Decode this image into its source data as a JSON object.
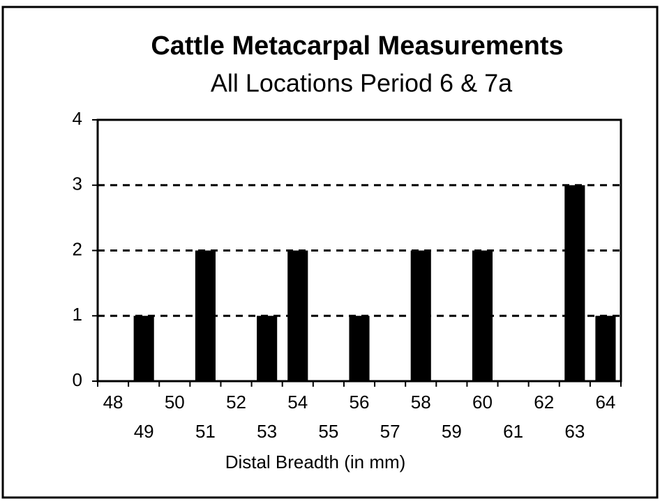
{
  "chart_data": {
    "type": "bar",
    "title": "Cattle Metacarpal Measurements",
    "subtitle": "All Locations Period 6 & 7a",
    "x_label": "Distal Breadth (in mm)",
    "categories": [
      "48",
      "49",
      "50",
      "51",
      "52",
      "53",
      "54",
      "55",
      "56",
      "57",
      "58",
      "59",
      "60",
      "61",
      "62",
      "63",
      "64"
    ],
    "values": [
      0,
      1,
      0,
      2,
      0,
      1,
      2,
      0,
      1,
      0,
      2,
      0,
      2,
      0,
      0,
      3,
      1
    ],
    "color": "#000000",
    "ylim": [
      0,
      4
    ],
    "yticks": [
      0,
      1,
      2,
      3,
      4
    ],
    "grid": true
  }
}
